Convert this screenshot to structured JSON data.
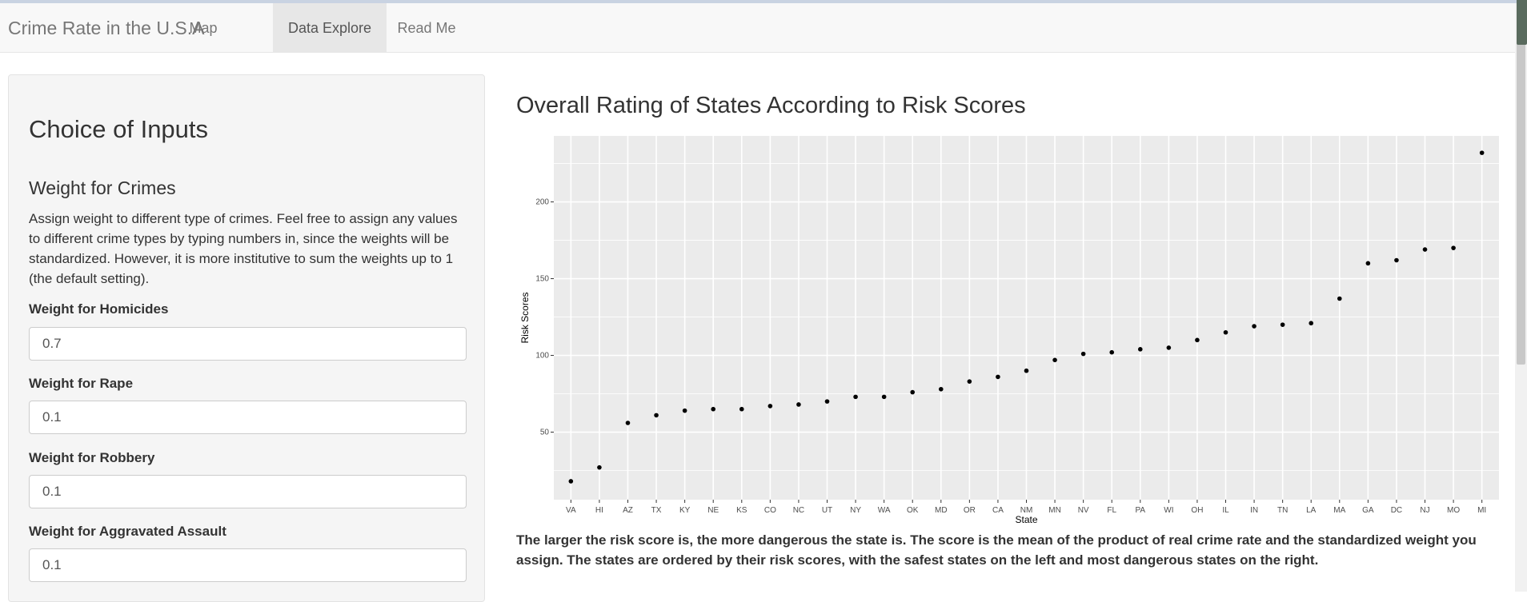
{
  "app": {
    "brand": "Crime Rate in the U.S.A",
    "nav": [
      "Map",
      "Data Explore",
      "Read Me"
    ],
    "active_tab": "Data Explore"
  },
  "sidebar": {
    "title": "Choice of Inputs",
    "section_title": "Weight for Crimes",
    "description": "Assign weight to different type of crimes. Feel free to assign any values to different crime types by typing numbers in, since the weights will be standardized. However, it is more institutive to sum the weights up to 1 (the default setting).",
    "fields": [
      {
        "label": "Weight for Homicides",
        "value": "0.7"
      },
      {
        "label": "Weight for Rape",
        "value": "0.1"
      },
      {
        "label": "Weight for Robbery",
        "value": "0.1"
      },
      {
        "label": "Weight for Aggravated Assault",
        "value": "0.1"
      }
    ]
  },
  "main": {
    "title": "Overall Rating of States According to Risk Scores",
    "note": "The larger the risk score is, the more dangerous the state is. The score is the mean of the product of real crime rate and the standardized weight you assign. The states are ordered by their risk scores, with the safest states on the left and most dangerous states on the right."
  },
  "chart_data": {
    "type": "scatter",
    "xlabel": "State",
    "ylabel": "Risk Scores",
    "categories": [
      "VA",
      "HI",
      "AZ",
      "TX",
      "KY",
      "NE",
      "KS",
      "CO",
      "NC",
      "UT",
      "NY",
      "WA",
      "OK",
      "MD",
      "OR",
      "CA",
      "NM",
      "MN",
      "NV",
      "FL",
      "PA",
      "WI",
      "OH",
      "IL",
      "IN",
      "TN",
      "LA",
      "MA",
      "GA",
      "DC",
      "NJ",
      "MO",
      "MI"
    ],
    "values": [
      18,
      27,
      56,
      61,
      64,
      65,
      65,
      67,
      68,
      70,
      73,
      73,
      76,
      78,
      83,
      86,
      90,
      97,
      101,
      102,
      104,
      105,
      110,
      115,
      119,
      120,
      121,
      137,
      160,
      162,
      169,
      170,
      232
    ],
    "yticks": [
      50,
      100,
      150,
      200
    ],
    "ylim": [
      6,
      243
    ],
    "grid": true,
    "colors": {
      "panel": "#ebebeb",
      "grid": "#ffffff",
      "point": "#000000"
    }
  }
}
